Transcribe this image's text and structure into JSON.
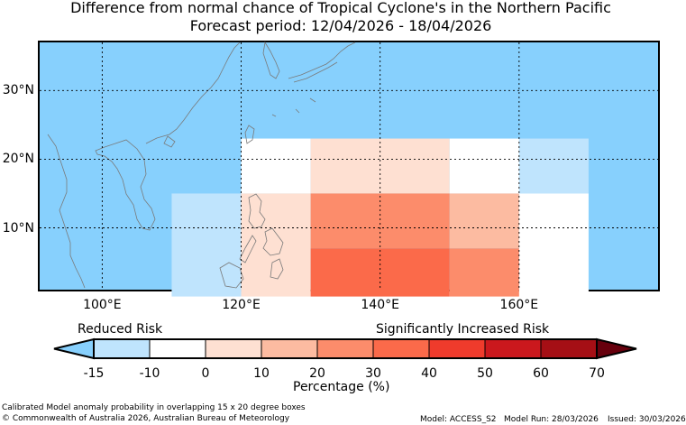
{
  "title": "Difference from normal chance of Tropical Cyclone's in the Northern Pacific",
  "subtitle": "Forecast period: 12/04/2026 - 18/04/2026",
  "map": {
    "lon_range": [
      91,
      180
    ],
    "lat_range": [
      1,
      37
    ],
    "ocean_color": "#87d0fd",
    "grid_style": "dashed",
    "lat_ticks": [
      {
        "value": 30,
        "label": "30°N"
      },
      {
        "value": 20,
        "label": "20°N"
      },
      {
        "value": 10,
        "label": "10°N"
      }
    ],
    "lon_ticks": [
      {
        "value": 100,
        "label": "100°E"
      },
      {
        "value": 120,
        "label": "120°E"
      },
      {
        "value": 140,
        "label": "140°E"
      },
      {
        "value": 160,
        "label": "160°E"
      }
    ],
    "cells": [
      {
        "lon": [
          120,
          130
        ],
        "lat": [
          15,
          23
        ],
        "color": "#ffffff"
      },
      {
        "lon": [
          130,
          150
        ],
        "lat": [
          15,
          23
        ],
        "color": "#fee0d2"
      },
      {
        "lon": [
          150,
          160
        ],
        "lat": [
          15,
          23
        ],
        "color": "#ffffff"
      },
      {
        "lon": [
          160,
          170
        ],
        "lat": [
          15,
          23
        ],
        "color": "#bfe4fd"
      },
      {
        "lon": [
          110,
          120
        ],
        "lat": [
          0,
          15
        ],
        "color": "#bfe4fd"
      },
      {
        "lon": [
          120,
          130
        ],
        "lat": [
          0,
          15
        ],
        "color": "#fee0d2"
      },
      {
        "lon": [
          130,
          150
        ],
        "lat": [
          7,
          15
        ],
        "color": "#fc8c6b"
      },
      {
        "lon": [
          150,
          160
        ],
        "lat": [
          7,
          15
        ],
        "color": "#fcbba1"
      },
      {
        "lon": [
          160,
          170
        ],
        "lat": [
          0,
          15
        ],
        "color": "#ffffff"
      },
      {
        "lon": [
          130,
          150
        ],
        "lat": [
          0,
          7
        ],
        "color": "#fb6a4a"
      },
      {
        "lon": [
          150,
          160
        ],
        "lat": [
          0,
          7
        ],
        "color": "#fc8c6b"
      }
    ]
  },
  "colorbar": {
    "left_label": "Reduced Risk",
    "right_label": "Significantly Increased Risk",
    "xlabel": "Percentage (%)",
    "under_color": "#87d0fd",
    "over_color": "#67000d",
    "bins": [
      {
        "color": "#bfe4fd"
      },
      {
        "color": "#ffffff"
      },
      {
        "color": "#fee0d2"
      },
      {
        "color": "#fcbba1"
      },
      {
        "color": "#fc8c6b"
      },
      {
        "color": "#fb6a4a"
      },
      {
        "color": "#ef3b2c"
      },
      {
        "color": "#cb181d"
      },
      {
        "color": "#a50f15"
      }
    ],
    "ticks": [
      "-15",
      "-10",
      "0",
      "10",
      "20",
      "30",
      "40",
      "50",
      "60",
      "70"
    ]
  },
  "footer": {
    "note": "Calibrated Model anomaly probability in overlapping 15 x 20 degree boxes",
    "copyright": "© Commonwealth of Australia 2026, Australian Bureau of Meteorology",
    "model": "Model: ACCESS_S2",
    "model_run": "Model Run: 28/03/2026",
    "issued": "Issued: 30/03/2026"
  }
}
